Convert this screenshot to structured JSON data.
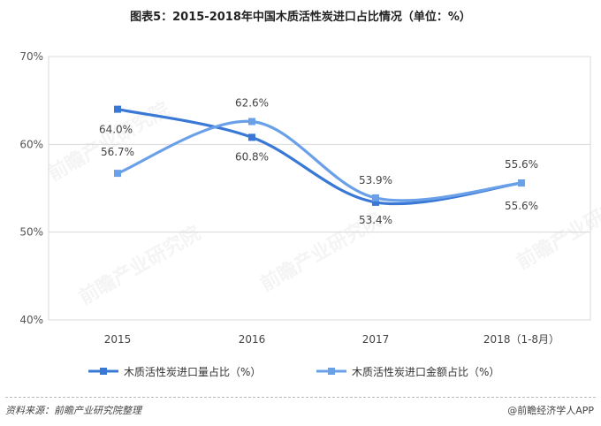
{
  "chart_data": {
    "type": "line",
    "title": "图表5：2015-2018年中国木质活性炭进口占比情况（单位：%）",
    "categories": [
      "2015",
      "2016",
      "2017",
      "2018（1-8月）"
    ],
    "ylim": [
      40,
      70
    ],
    "yticks": [
      "40%",
      "50%",
      "60%",
      "70%"
    ],
    "grid": "horizontal",
    "legend": "bottom",
    "series": [
      {
        "name": "木质活性炭进口量占比（%）",
        "values": [
          64.0,
          60.8,
          53.4,
          55.6
        ],
        "labels": [
          "64.0%",
          "60.8%",
          "53.4%",
          "55.6%"
        ],
        "color": "#3a78d6"
      },
      {
        "name": "木质活性炭进口金额占比（%）",
        "values": [
          56.7,
          62.6,
          53.9,
          55.6
        ],
        "labels": [
          "56.7%",
          "62.6%",
          "53.9%",
          "55.6%"
        ],
        "color": "#6aa0e8"
      }
    ]
  },
  "footer": {
    "source": "资料来源：前瞻产业研究院整理",
    "brand": "@前瞻经济学人APP"
  },
  "watermark": {
    "text": "前瞻产业研究院"
  }
}
